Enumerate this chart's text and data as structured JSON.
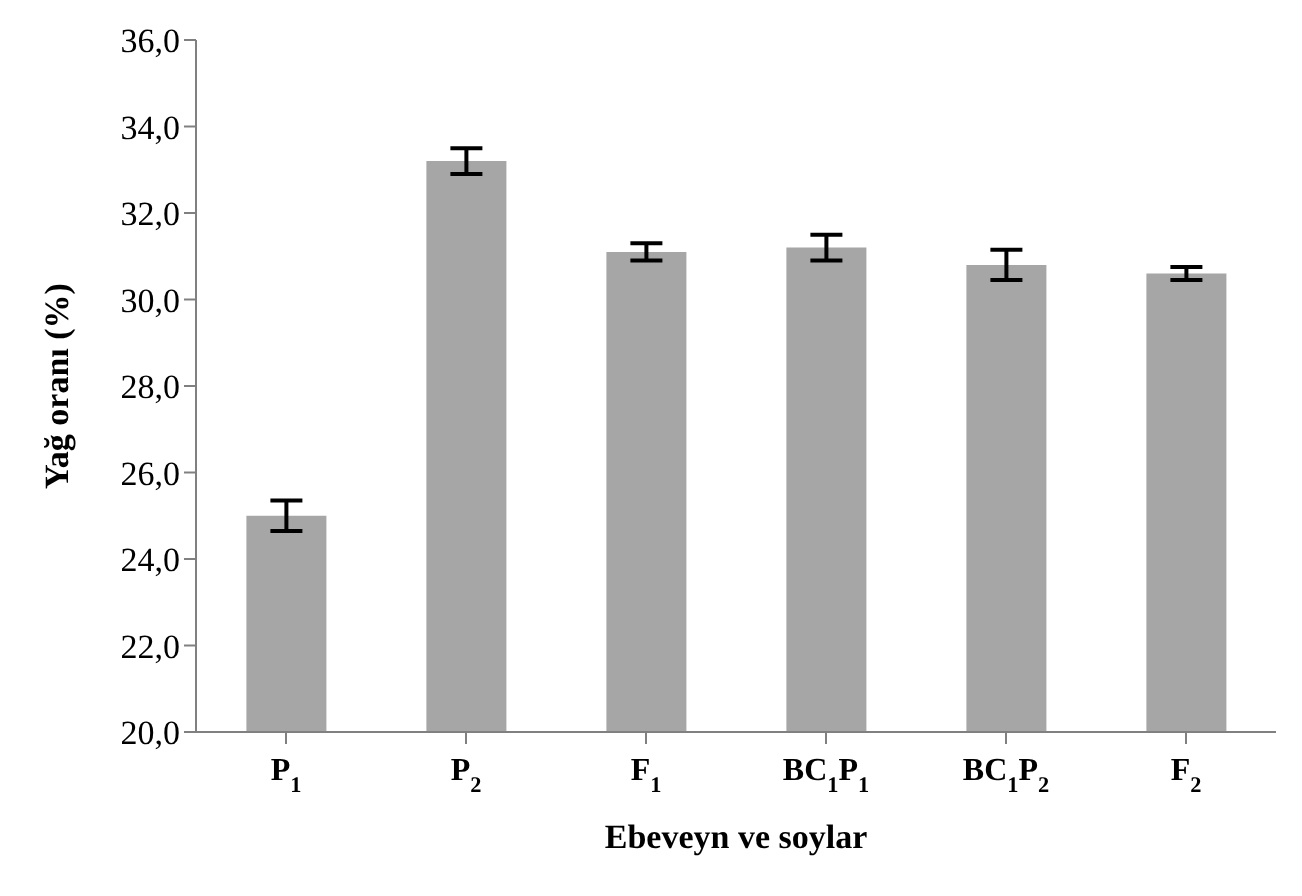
{
  "chart_data": {
    "type": "bar",
    "xlabel": "Ebeveyn ve soylar",
    "ylabel": "Yağ oranı (%)",
    "categories": [
      "P$_{1}$",
      "P$_{2}$",
      "F$_{1}$",
      "BC$_{1}$P$_{1}$",
      "BC$_{1}$P$_{2}$",
      "F$_{2}$"
    ],
    "values": [
      25.0,
      33.2,
      31.1,
      31.2,
      30.8,
      30.6
    ],
    "errors": [
      0.35,
      0.3,
      0.2,
      0.3,
      0.35,
      0.15
    ],
    "color": "#a6a6a6",
    "ylim": [
      20,
      36
    ],
    "yticks": [
      {
        "value": 20,
        "label": "20,0"
      },
      {
        "value": 22,
        "label": "22,0"
      },
      {
        "value": 24,
        "label": "24,0"
      },
      {
        "value": 26,
        "label": "26,0"
      },
      {
        "value": 28,
        "label": "28,0"
      },
      {
        "value": 30,
        "label": "30,0"
      },
      {
        "value": 32,
        "label": "32,0"
      },
      {
        "value": 34,
        "label": "34,0"
      },
      {
        "value": 36,
        "label": "36,0"
      }
    ],
    "grid": false,
    "legend": false
  }
}
